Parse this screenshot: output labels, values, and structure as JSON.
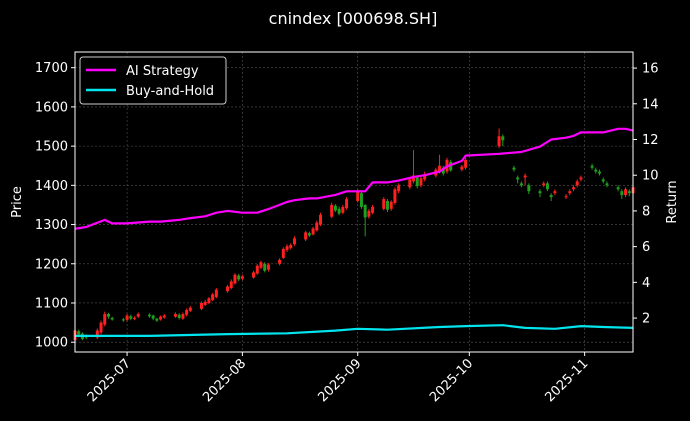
{
  "chart_data": {
    "type": "candlestick",
    "title": "cnindex [000698.SH]",
    "xlabel": "",
    "ylabel": "Price",
    "ylabel_right": "Return",
    "ylim": [
      975,
      1740
    ],
    "ylim_right": [
      0.1,
      16.9
    ],
    "yticks": [
      1000,
      1100,
      1200,
      1300,
      1400,
      1500,
      1600,
      1700
    ],
    "yticks_right": [
      2,
      4,
      6,
      8,
      10,
      12,
      14,
      16
    ],
    "x_range": [
      "2025-06-17",
      "2025-11-14"
    ],
    "xticks": [
      "2025-07-01",
      "2025-08-01",
      "2025-09-01",
      "2025-10-01",
      "2025-11-01"
    ],
    "xtick_labels": [
      "2025-07",
      "2025-08",
      "2025-09",
      "2025-10",
      "2025-11"
    ],
    "grid": true,
    "legend_position": "top-left",
    "legend": [
      "AI Strategy",
      "Buy-and-Hold"
    ],
    "candles": {
      "dates": [
        "2025-06-17",
        "2025-06-18",
        "2025-06-19",
        "2025-06-20",
        "2025-06-23",
        "2025-06-24",
        "2025-06-25",
        "2025-06-26",
        "2025-06-27",
        "2025-06-30",
        "2025-07-01",
        "2025-07-02",
        "2025-07-03",
        "2025-07-04",
        "2025-07-07",
        "2025-07-08",
        "2025-07-09",
        "2025-07-10",
        "2025-07-11",
        "2025-07-14",
        "2025-07-15",
        "2025-07-16",
        "2025-07-17",
        "2025-07-18",
        "2025-07-21",
        "2025-07-22",
        "2025-07-23",
        "2025-07-24",
        "2025-07-25",
        "2025-07-28",
        "2025-07-29",
        "2025-07-30",
        "2025-07-31",
        "2025-08-01",
        "2025-08-04",
        "2025-08-05",
        "2025-08-06",
        "2025-08-07",
        "2025-08-08",
        "2025-08-11",
        "2025-08-12",
        "2025-08-13",
        "2025-08-14",
        "2025-08-15",
        "2025-08-18",
        "2025-08-19",
        "2025-08-20",
        "2025-08-21",
        "2025-08-22",
        "2025-08-25",
        "2025-08-26",
        "2025-08-27",
        "2025-08-28",
        "2025-08-29",
        "2025-09-01",
        "2025-09-02",
        "2025-09-03",
        "2025-09-04",
        "2025-09-05",
        "2025-09-08",
        "2025-09-09",
        "2025-09-10",
        "2025-09-11",
        "2025-09-12",
        "2025-09-15",
        "2025-09-16",
        "2025-09-17",
        "2025-09-18",
        "2025-09-19",
        "2025-09-22",
        "2025-09-23",
        "2025-09-24",
        "2025-09-25",
        "2025-09-26",
        "2025-09-29",
        "2025-09-30",
        "2025-10-09",
        "2025-10-10",
        "2025-10-13",
        "2025-10-14",
        "2025-10-15",
        "2025-10-16",
        "2025-10-17",
        "2025-10-20",
        "2025-10-21",
        "2025-10-22",
        "2025-10-23",
        "2025-10-24",
        "2025-10-27",
        "2025-10-28",
        "2025-10-29",
        "2025-10-30",
        "2025-10-31",
        "2025-11-03",
        "2025-11-04",
        "2025-11-05",
        "2025-11-06",
        "2025-11-07",
        "2025-11-10",
        "2025-11-11",
        "2025-11-12",
        "2025-11-13",
        "2025-11-14"
      ],
      "open": [
        1005,
        1028,
        1022,
        1015,
        1012,
        1025,
        1045,
        1072,
        1062,
        1058,
        1057,
        1066,
        1060,
        1065,
        1070,
        1068,
        1060,
        1058,
        1063,
        1065,
        1070,
        1060,
        1070,
        1080,
        1085,
        1095,
        1100,
        1108,
        1115,
        1130,
        1138,
        1150,
        1170,
        1162,
        1165,
        1175,
        1190,
        1200,
        1185,
        1200,
        1215,
        1235,
        1240,
        1250,
        1262,
        1278,
        1275,
        1285,
        1300,
        1320,
        1348,
        1340,
        1330,
        1342,
        1360,
        1380,
        1350,
        1320,
        1330,
        1340,
        1360,
        1340,
        1355,
        1385,
        1395,
        1410,
        1420,
        1400,
        1415,
        1425,
        1435,
        1445,
        1435,
        1460,
        1440,
        1445,
        1500,
        1525,
        1445,
        1420,
        1405,
        1420,
        1400,
        1385,
        1400,
        1405,
        1375,
        1380,
        1370,
        1380,
        1390,
        1400,
        1415,
        1450,
        1440,
        1435,
        1415,
        1405,
        1395,
        1385,
        1375,
        1385,
        1380
      ],
      "close": [
        1030,
        1020,
        1008,
        1012,
        1030,
        1050,
        1072,
        1065,
        1058,
        1056,
        1068,
        1060,
        1062,
        1072,
        1066,
        1060,
        1055,
        1065,
        1068,
        1072,
        1062,
        1072,
        1082,
        1088,
        1100,
        1103,
        1112,
        1122,
        1134,
        1142,
        1155,
        1172,
        1160,
        1168,
        1178,
        1195,
        1204,
        1182,
        1198,
        1210,
        1238,
        1245,
        1248,
        1265,
        1280,
        1272,
        1290,
        1305,
        1325,
        1350,
        1336,
        1328,
        1345,
        1365,
        1385,
        1345,
        1318,
        1335,
        1345,
        1365,
        1338,
        1358,
        1390,
        1400,
        1415,
        1425,
        1398,
        1418,
        1428,
        1440,
        1450,
        1430,
        1465,
        1438,
        1448,
        1465,
        1525,
        1515,
        1440,
        1415,
        1400,
        1425,
        1385,
        1380,
        1405,
        1390,
        1370,
        1385,
        1372,
        1385,
        1395,
        1410,
        1420,
        1445,
        1435,
        1430,
        1410,
        1400,
        1390,
        1375,
        1390,
        1380,
        1395
      ],
      "high": [
        1035,
        1032,
        1025,
        1020,
        1035,
        1055,
        1078,
        1075,
        1065,
        1062,
        1072,
        1070,
        1066,
        1076,
        1074,
        1070,
        1062,
        1068,
        1072,
        1076,
        1074,
        1076,
        1086,
        1092,
        1104,
        1108,
        1115,
        1126,
        1138,
        1146,
        1160,
        1176,
        1174,
        1172,
        1182,
        1199,
        1208,
        1204,
        1202,
        1214,
        1242,
        1250,
        1252,
        1270,
        1284,
        1282,
        1294,
        1310,
        1330,
        1356,
        1352,
        1346,
        1350,
        1370,
        1390,
        1385,
        1352,
        1340,
        1350,
        1370,
        1365,
        1362,
        1395,
        1405,
        1420,
        1490,
        1425,
        1422,
        1435,
        1445,
        1478,
        1450,
        1470,
        1465,
        1452,
        1470,
        1545,
        1530,
        1450,
        1425,
        1410,
        1430,
        1405,
        1390,
        1410,
        1410,
        1380,
        1390,
        1378,
        1390,
        1400,
        1415,
        1425,
        1455,
        1445,
        1440,
        1420,
        1410,
        1400,
        1390,
        1395,
        1390,
        1400
      ],
      "low": [
        1000,
        1015,
        1005,
        1008,
        1008,
        1020,
        1040,
        1060,
        1055,
        1052,
        1052,
        1056,
        1056,
        1062,
        1062,
        1056,
        1052,
        1055,
        1060,
        1062,
        1058,
        1057,
        1066,
        1077,
        1082,
        1092,
        1097,
        1105,
        1112,
        1126,
        1135,
        1147,
        1156,
        1158,
        1162,
        1172,
        1186,
        1178,
        1180,
        1196,
        1212,
        1230,
        1236,
        1246,
        1258,
        1268,
        1272,
        1282,
        1296,
        1316,
        1332,
        1324,
        1326,
        1338,
        1356,
        1340,
        1270,
        1315,
        1326,
        1336,
        1332,
        1335,
        1350,
        1380,
        1390,
        1405,
        1392,
        1395,
        1410,
        1420,
        1430,
        1425,
        1430,
        1435,
        1436,
        1440,
        1495,
        1500,
        1435,
        1405,
        1395,
        1400,
        1378,
        1370,
        1395,
        1385,
        1360,
        1375,
        1365,
        1375,
        1385,
        1395,
        1410,
        1440,
        1430,
        1425,
        1405,
        1395,
        1385,
        1365,
        1370,
        1372,
        1375
      ]
    },
    "series": [
      {
        "name": "AI Strategy",
        "color": "#ff00ff",
        "dates": [
          "2025-06-17",
          "2025-06-20",
          "2025-06-25",
          "2025-06-27",
          "2025-07-01",
          "2025-07-07",
          "2025-07-10",
          "2025-07-15",
          "2025-07-18",
          "2025-07-22",
          "2025-07-25",
          "2025-07-28",
          "2025-08-01",
          "2025-08-05",
          "2025-08-08",
          "2025-08-13",
          "2025-08-15",
          "2025-08-19",
          "2025-08-21",
          "2025-08-26",
          "2025-08-29",
          "2025-09-01",
          "2025-09-03",
          "2025-09-05",
          "2025-09-09",
          "2025-09-12",
          "2025-09-16",
          "2025-09-19",
          "2025-09-23",
          "2025-09-25",
          "2025-09-29",
          "2025-09-30",
          "2025-10-09",
          "2025-10-15",
          "2025-10-20",
          "2025-10-23",
          "2025-10-27",
          "2025-10-29",
          "2025-10-31",
          "2025-11-04",
          "2025-11-06",
          "2025-11-10",
          "2025-11-12",
          "2025-11-14"
        ],
        "values": [
          7.0,
          7.1,
          7.5,
          7.3,
          7.3,
          7.4,
          7.4,
          7.5,
          7.6,
          7.7,
          7.9,
          8.0,
          7.9,
          7.9,
          8.1,
          8.5,
          8.6,
          8.7,
          8.7,
          8.9,
          9.1,
          9.1,
          9.1,
          9.6,
          9.6,
          9.7,
          9.9,
          10.0,
          10.2,
          10.5,
          10.8,
          11.1,
          11.2,
          11.3,
          11.6,
          12.0,
          12.1,
          12.2,
          12.4,
          12.4,
          12.4,
          12.6,
          12.6,
          12.5
        ]
      },
      {
        "name": "Buy-and-Hold",
        "color": "#00e5ee",
        "dates": [
          "2025-06-17",
          "2025-07-07",
          "2025-07-28",
          "2025-08-13",
          "2025-08-26",
          "2025-09-01",
          "2025-09-09",
          "2025-09-23",
          "2025-09-30",
          "2025-10-10",
          "2025-10-16",
          "2025-10-24",
          "2025-10-31",
          "2025-11-06",
          "2025-11-14"
        ],
        "values": [
          1.0,
          1.0,
          1.1,
          1.15,
          1.3,
          1.4,
          1.35,
          1.5,
          1.55,
          1.6,
          1.45,
          1.4,
          1.55,
          1.5,
          1.45
        ]
      }
    ]
  }
}
